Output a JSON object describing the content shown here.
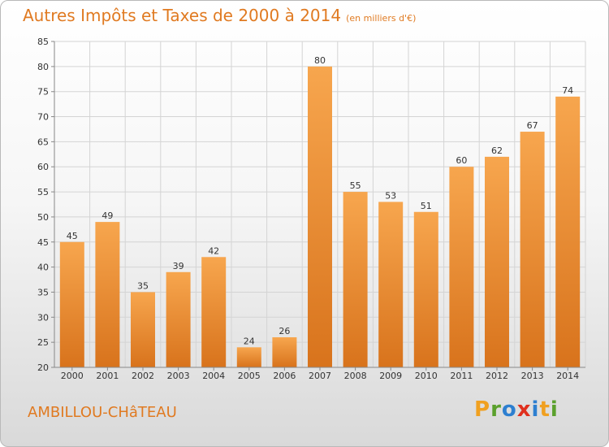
{
  "header": {
    "title": "Autres Impôts et Taxes de 2000 à 2014",
    "subtitle": "(en milliers d'€)"
  },
  "footer": {
    "location": "AMBILLOU-CHâTEAU",
    "logo": "Proxiti",
    "logo_colors": [
      "#f0a020",
      "#5aa02c",
      "#2d7fd0",
      "#e0301e",
      "#2d7fd0",
      "#f0a020",
      "#5aa02c"
    ]
  },
  "colors": {
    "bar_light": "#f7a64e",
    "bar_dark": "#d8731c",
    "grid": "#d4d4d4",
    "axis": "#888888",
    "text": "#333333",
    "title": "#e07a21"
  },
  "chart_data": {
    "type": "bar",
    "categories": [
      "2000",
      "2001",
      "2002",
      "2003",
      "2004",
      "2005",
      "2006",
      "2007",
      "2008",
      "2009",
      "2010",
      "2011",
      "2012",
      "2013",
      "2014"
    ],
    "values": [
      45,
      49,
      35,
      39,
      42,
      24,
      26,
      80,
      55,
      53,
      51,
      60,
      62,
      67,
      74
    ],
    "title": "Autres Impôts et Taxes de 2000 à 2014",
    "xlabel": "",
    "ylabel": "",
    "ylim": [
      20,
      85
    ],
    "yticks": [
      20,
      25,
      30,
      35,
      40,
      45,
      50,
      55,
      60,
      65,
      70,
      75,
      80,
      85
    ],
    "grid": true,
    "show_value_labels": true
  }
}
